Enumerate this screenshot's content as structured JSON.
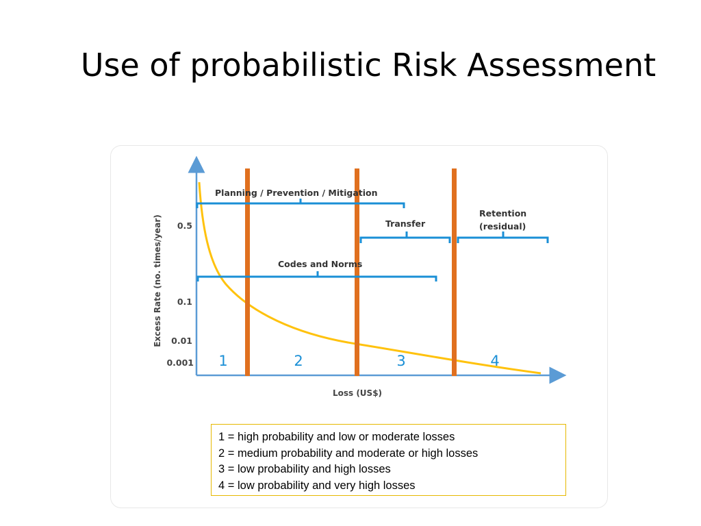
{
  "slide": {
    "title": "Use of probabilistic Risk Assessment"
  },
  "diagram": {
    "y_axis_title": "Excess Rate (no. times/year)",
    "x_axis_title": "Loss (US$)",
    "y_ticks": [
      "0.5",
      "0.1",
      "0.01",
      "0.001"
    ],
    "zones": [
      "1",
      "2",
      "3",
      "4"
    ],
    "brackets": {
      "planning": "Planning / Prevention / Mitigation",
      "transfer": "Transfer",
      "retention_line1": "Retention",
      "retention_line2": "(residual)",
      "codes": "Codes and Norms"
    },
    "colors": {
      "curve": "#ffc20e",
      "divider": "#e0701f",
      "bracket": "#1a8fd6",
      "axis": "#5b9bd5",
      "zone_text": "#1a8fd6"
    }
  },
  "legend": {
    "items": [
      "1 = high probability and low or moderate losses",
      "2 = medium probability and moderate or high losses",
      "3 = low probability and high losses",
      "4 = low probability and very high losses"
    ]
  }
}
